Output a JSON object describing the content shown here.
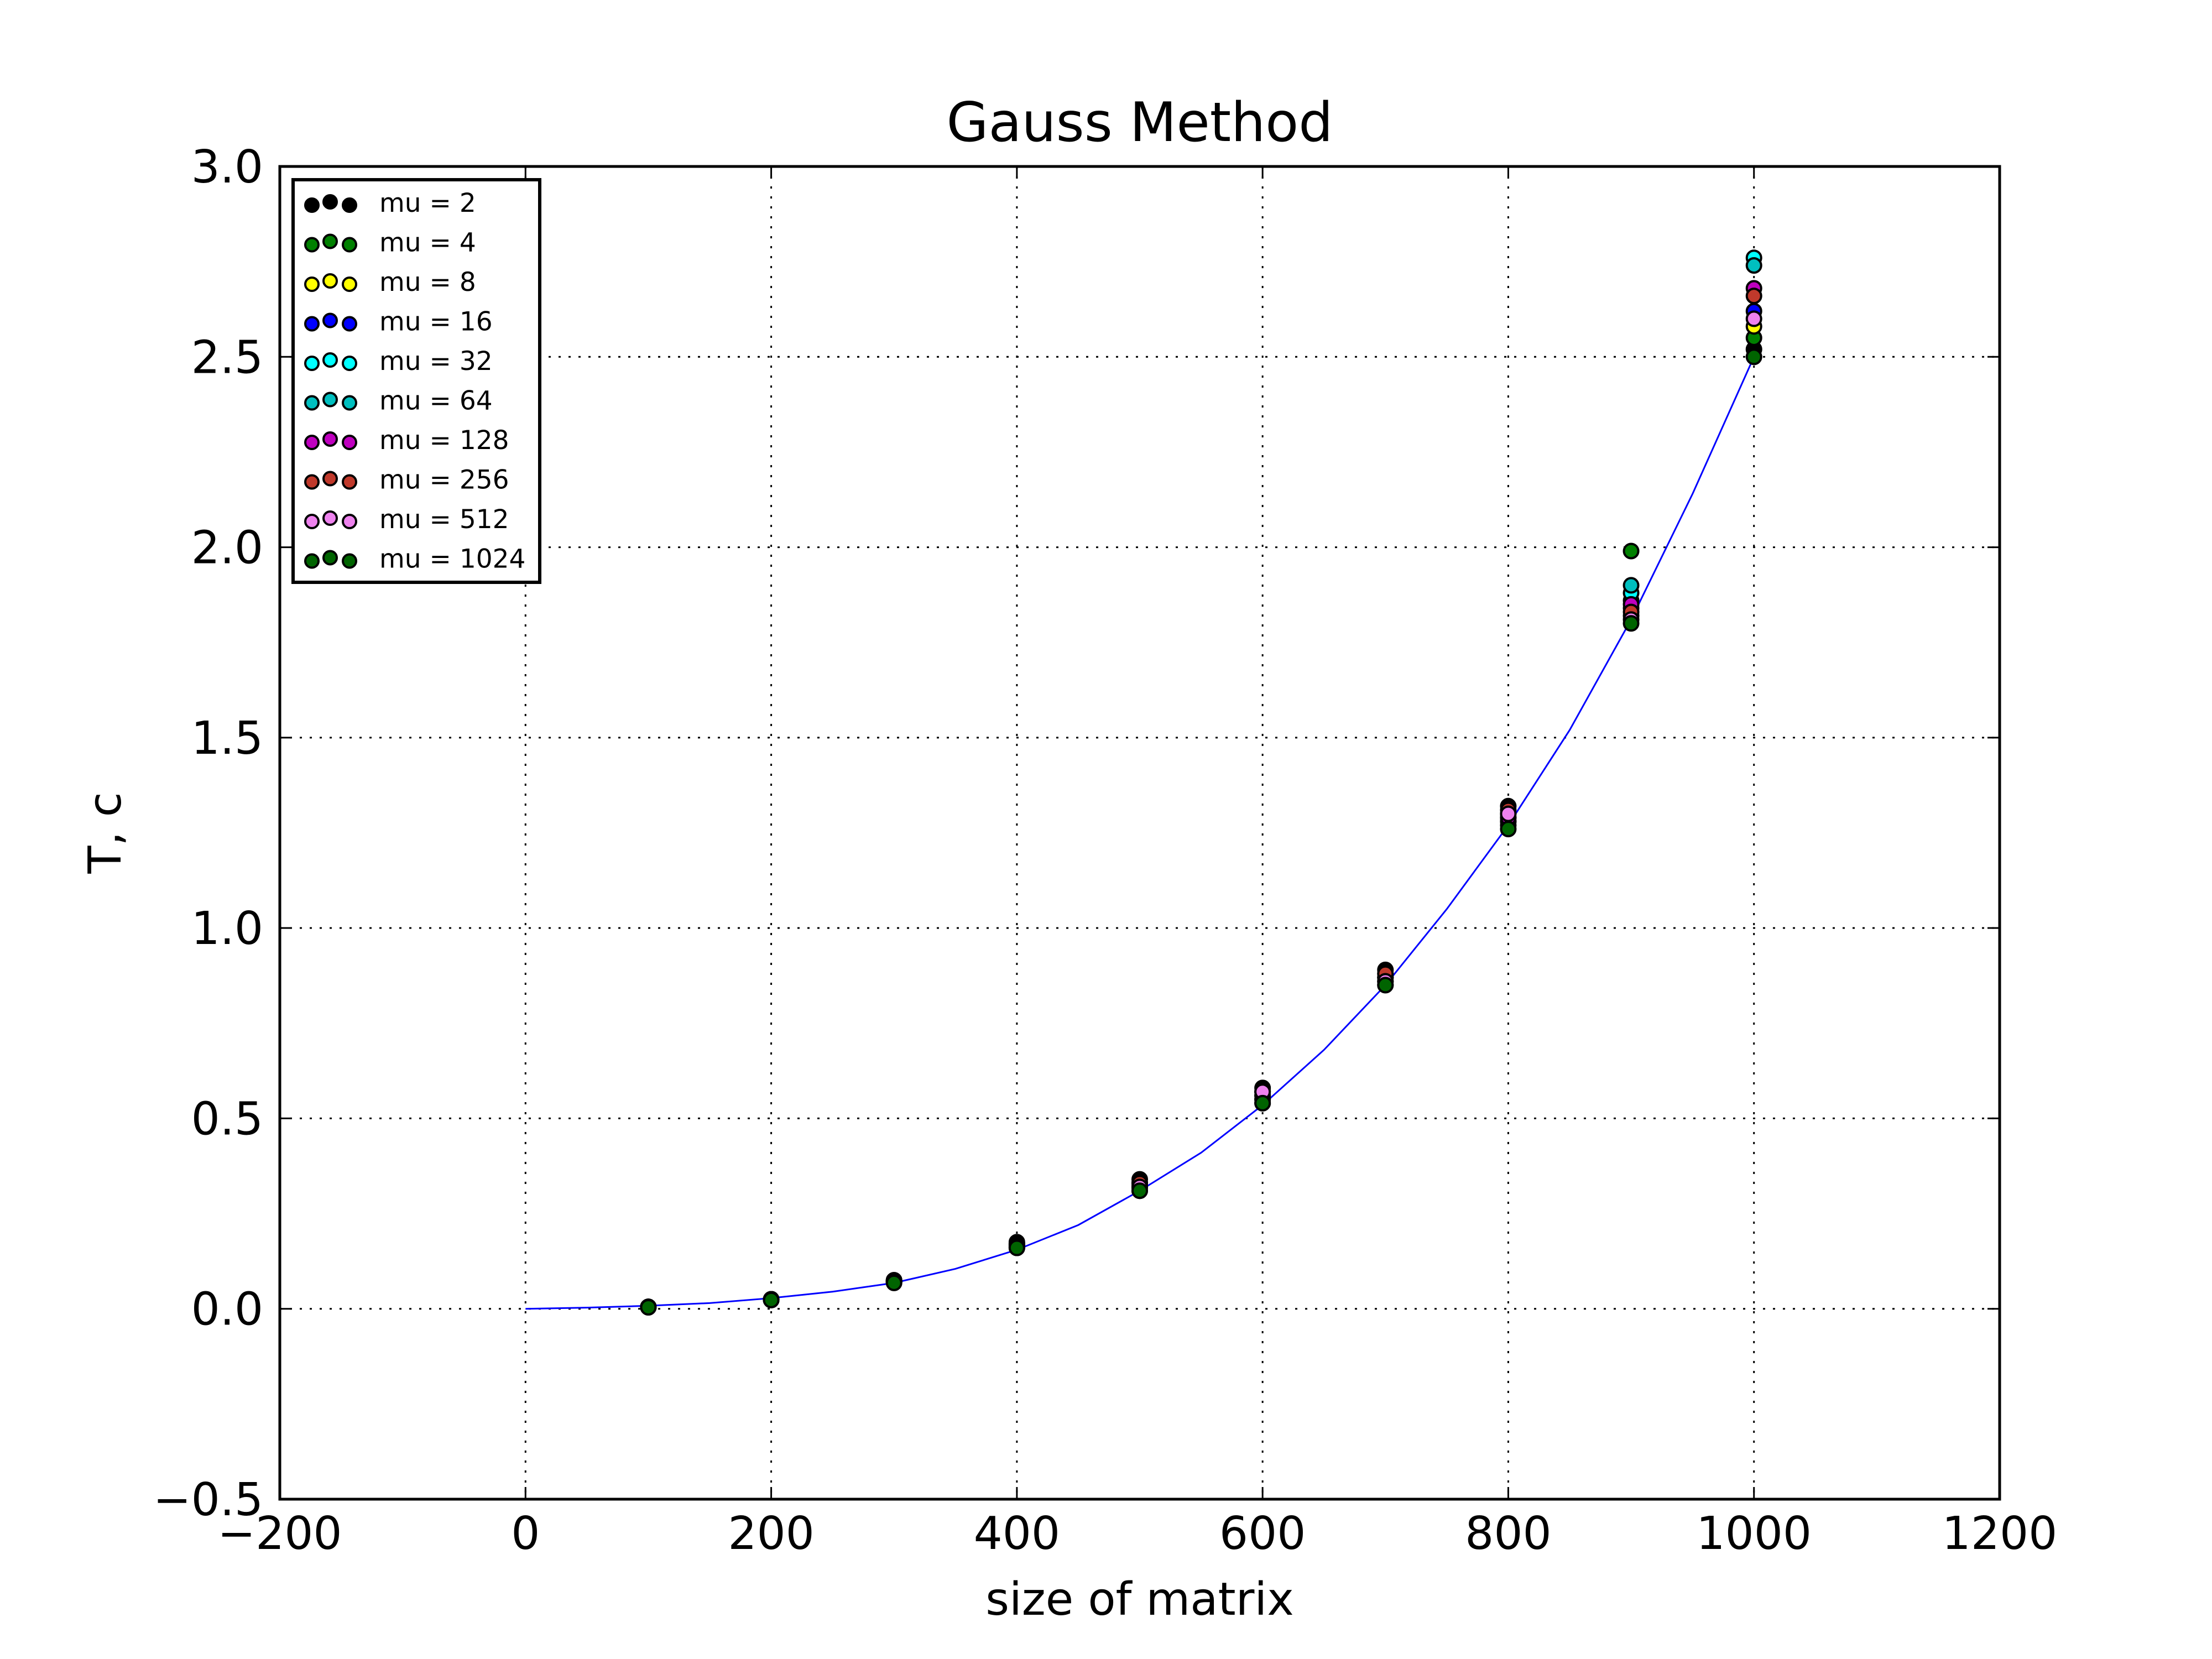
{
  "chart_data": {
    "type": "scatter",
    "title": "Gauss Method",
    "xlabel": "size of matrix",
    "ylabel": "T, c",
    "xlim": [
      -200,
      1200
    ],
    "ylim": [
      -0.5,
      3.0
    ],
    "xticks": [
      -200,
      0,
      200,
      400,
      600,
      800,
      1000,
      1200
    ],
    "yticks": [
      -0.5,
      0.0,
      0.5,
      1.0,
      1.5,
      2.0,
      2.5,
      3.0
    ],
    "xtick_labels": [
      "−200",
      "0",
      "200",
      "400",
      "600",
      "800",
      "1000",
      "1200"
    ],
    "ytick_labels": [
      "−0.5",
      "0.0",
      "0.5",
      "1.0",
      "1.5",
      "2.0",
      "2.5",
      "3.0"
    ],
    "grid": true,
    "legend_position": "top-left",
    "x": [
      100,
      200,
      300,
      400,
      500,
      600,
      700,
      800,
      900,
      1000
    ],
    "series": [
      {
        "name": "mu = 2",
        "color": "#000000",
        "values": [
          0.005,
          0.025,
          0.075,
          0.175,
          0.34,
          0.58,
          0.89,
          1.32,
          1.82,
          2.52
        ]
      },
      {
        "name": "mu = 4",
        "color": "#008000",
        "values": [
          0.005,
          0.025,
          0.075,
          0.17,
          0.33,
          0.57,
          0.88,
          1.3,
          1.99,
          2.55
        ]
      },
      {
        "name": "mu = 8",
        "color": "#ffff00",
        "values": [
          0.005,
          0.024,
          0.072,
          0.165,
          0.32,
          0.56,
          0.87,
          1.29,
          1.84,
          2.58
        ]
      },
      {
        "name": "mu = 16",
        "color": "#0000ff",
        "values": [
          0.004,
          0.023,
          0.07,
          0.16,
          0.31,
          0.54,
          0.85,
          1.27,
          1.86,
          2.62
        ]
      },
      {
        "name": "mu = 32",
        "color": "#00ffff",
        "values": [
          0.005,
          0.024,
          0.072,
          0.165,
          0.32,
          0.55,
          0.86,
          1.28,
          1.88,
          2.76
        ]
      },
      {
        "name": "mu = 64",
        "color": "#00bfbf",
        "values": [
          0.005,
          0.024,
          0.07,
          0.16,
          0.32,
          0.55,
          0.87,
          1.28,
          1.9,
          2.74
        ]
      },
      {
        "name": "mu = 128",
        "color": "#bf00bf",
        "values": [
          0.005,
          0.025,
          0.073,
          0.17,
          0.33,
          0.56,
          0.87,
          1.29,
          1.85,
          2.68
        ]
      },
      {
        "name": "mu = 256",
        "color": "#c0392b",
        "values": [
          0.005,
          0.025,
          0.074,
          0.17,
          0.33,
          0.57,
          0.88,
          1.31,
          1.83,
          2.66
        ]
      },
      {
        "name": "mu = 512",
        "color": "#ee82ee",
        "values": [
          0.005,
          0.024,
          0.072,
          0.165,
          0.32,
          0.57,
          0.86,
          1.3,
          1.81,
          2.6
        ]
      },
      {
        "name": "mu = 1024",
        "color": "#006400",
        "values": [
          0.004,
          0.023,
          0.068,
          0.16,
          0.31,
          0.54,
          0.85,
          1.26,
          1.8,
          2.5
        ]
      }
    ],
    "fit_line": {
      "color": "#0000ff",
      "x": [
        0,
        50,
        100,
        150,
        200,
        250,
        300,
        350,
        400,
        450,
        500,
        550,
        600,
        650,
        700,
        750,
        800,
        850,
        900,
        950,
        1000
      ],
      "y": [
        0.0,
        0.003,
        0.008,
        0.015,
        0.028,
        0.045,
        0.068,
        0.105,
        0.155,
        0.22,
        0.31,
        0.41,
        0.535,
        0.68,
        0.85,
        1.05,
        1.27,
        1.52,
        1.81,
        2.14,
        2.5
      ]
    }
  }
}
